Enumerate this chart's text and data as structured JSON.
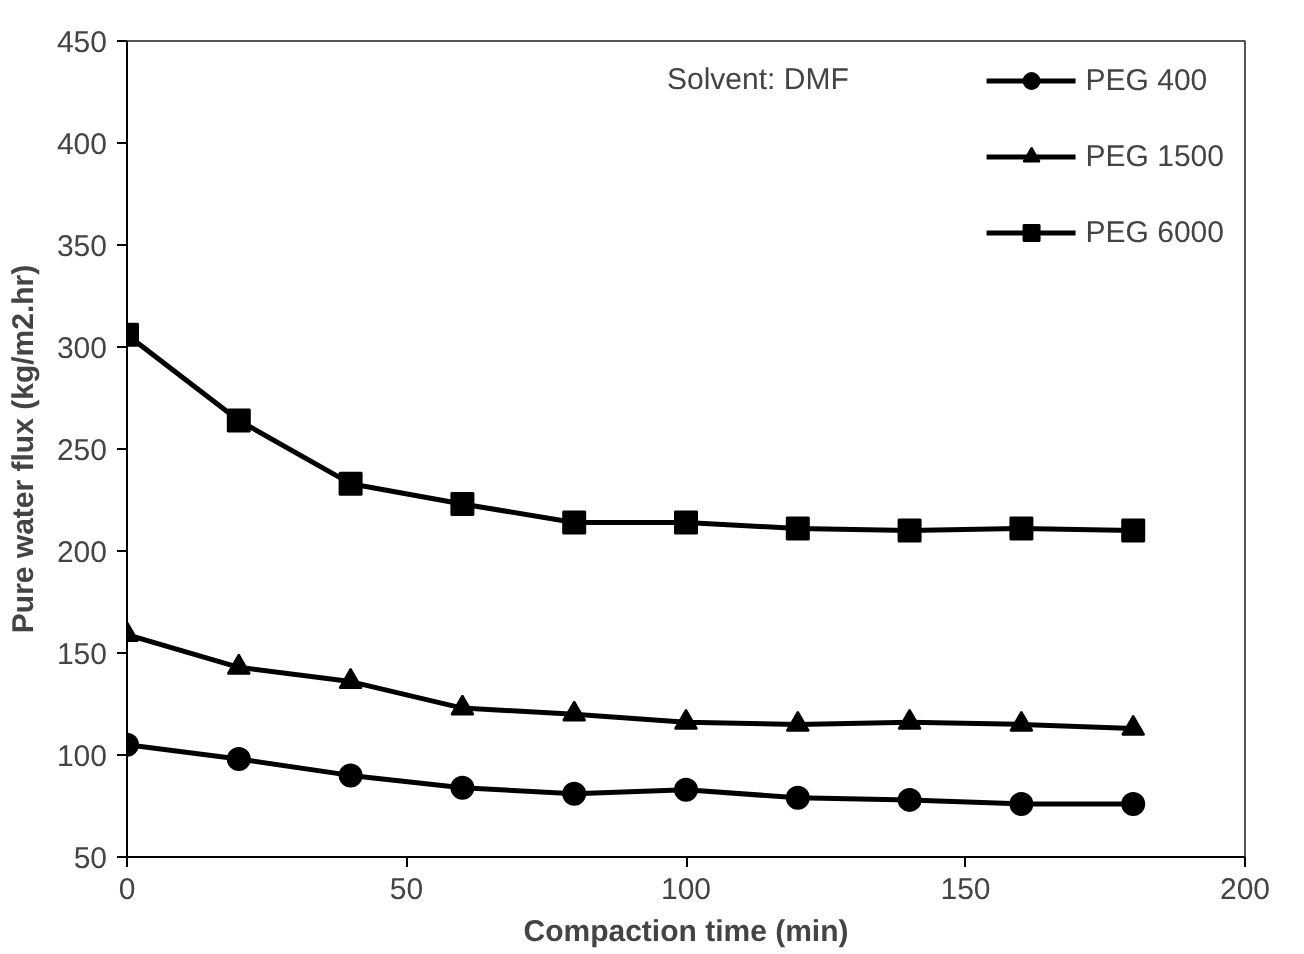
{
  "chart_data": {
    "type": "line",
    "xlabel": "Compaction time (min)",
    "ylabel": "Pure water flux (kg/m2.hr)",
    "x": [
      0,
      20,
      40,
      60,
      80,
      100,
      120,
      140,
      160,
      180
    ],
    "series": [
      {
        "name": "PEG 400",
        "color": "#000000",
        "marker": "circle",
        "values": [
          105,
          98,
          90,
          84,
          81,
          83,
          79,
          78,
          76,
          76
        ]
      },
      {
        "name": "PEG 1500",
        "color": "#000000",
        "marker": "triangle",
        "values": [
          159,
          143,
          136,
          123,
          120,
          116,
          115,
          116,
          115,
          113
        ]
      },
      {
        "name": "PEG 6000",
        "color": "#000000",
        "marker": "square",
        "values": [
          306,
          264,
          233,
          223,
          214,
          214,
          211,
          210,
          211,
          210
        ]
      }
    ],
    "xlim": [
      0,
      200
    ],
    "xticks": [
      0,
      50,
      100,
      150,
      200
    ],
    "ylim": [
      50,
      450
    ],
    "yticks": [
      50,
      100,
      150,
      200,
      250,
      300,
      350,
      400,
      450
    ],
    "grid": false,
    "legend": "top right",
    "line_style": "solid",
    "annotations": [
      "Solvent: DMF"
    ]
  }
}
